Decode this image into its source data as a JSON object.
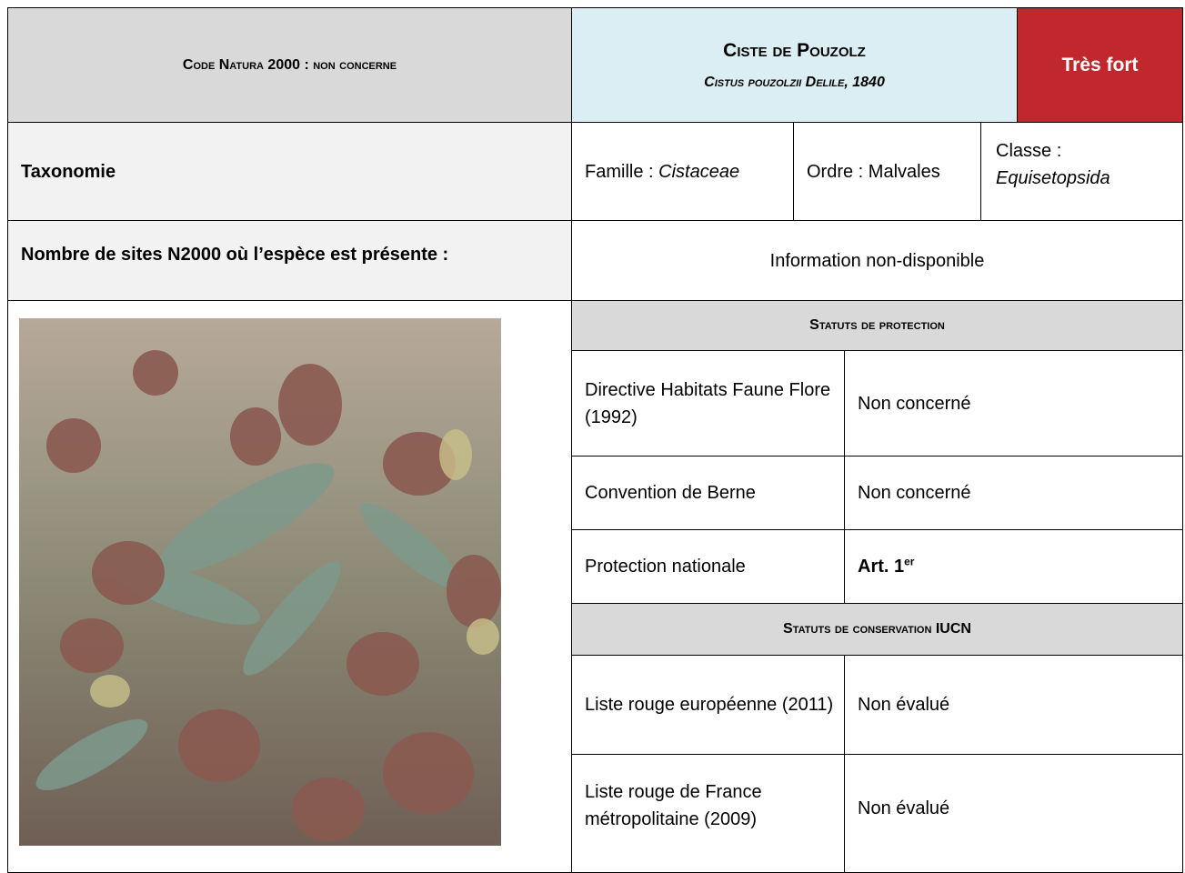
{
  "header": {
    "code": "Code Natura 2000 : non concerne",
    "name": "Ciste de Pouzolz",
    "scientific": "Cistus pouzolzii Delile, 1840",
    "level": "Très fort"
  },
  "taxonomy": {
    "label": "Taxonomie",
    "famille": {
      "label": "Famille :",
      "value": "Cistaceae"
    },
    "ordre": "Ordre : Malvales",
    "classe": {
      "label": "Classe :",
      "value": "Equisetopsida"
    }
  },
  "sites": {
    "label": "Nombre de sites N2000 où l’espèce est présente :",
    "value": "Information non-disponible"
  },
  "protection": {
    "title": "Statuts de protection",
    "rows": [
      {
        "label": "Directive Habitats Faune Flore (1992)",
        "value": "Non concerné"
      },
      {
        "label": "Convention de Berne",
        "value": "Non concerné"
      },
      {
        "label": "Protection nationale",
        "value": {
          "text": "Art. 1",
          "sup": "er"
        }
      }
    ]
  },
  "conservation": {
    "title": "Statuts de conservation IUCN",
    "rows": [
      {
        "label": "Liste rouge européenne (2011)",
        "value": "Non évalué"
      },
      {
        "label": "Liste rouge de France métropolitaine (2009)",
        "value": "Non évalué"
      }
    ]
  }
}
